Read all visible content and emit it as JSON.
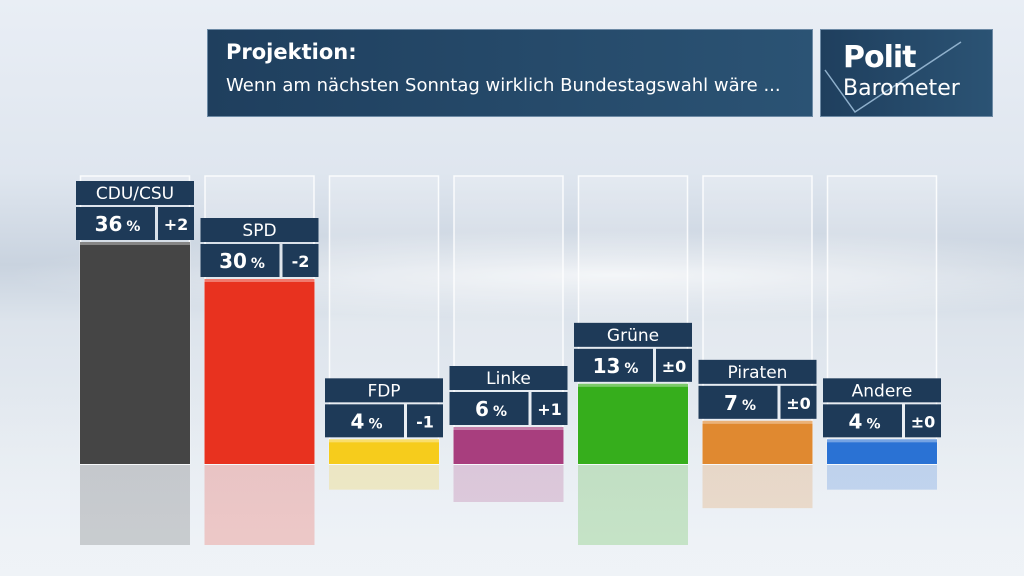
{
  "header": {
    "title": "Projektion:",
    "subtitle": "Wenn am nächsten Sonntag wirklich Bundestagswahl wäre ..."
  },
  "logo": {
    "line1": "Polit",
    "line2": "Barometer"
  },
  "chart_data": {
    "type": "bar",
    "title": "Projektion:",
    "subtitle": "Wenn am nächsten Sonntag wirklich Bundestagswahl wäre ...",
    "unit": "%",
    "ylim": [
      0,
      45
    ],
    "categories": [
      "CDU/CSU",
      "SPD",
      "FDP",
      "Linke",
      "Grüne",
      "Piraten",
      "Andere"
    ],
    "values": [
      36,
      30,
      4,
      6,
      13,
      7,
      4
    ],
    "changes": [
      "+2",
      "-2",
      "-1",
      "+1",
      "±0",
      "±0",
      "±0"
    ],
    "colors": [
      "#454545",
      "#e8321f",
      "#f6cc1c",
      "#a83e7e",
      "#36ae1c",
      "#e08930",
      "#2a72d4"
    ],
    "grid": false,
    "legend": "none"
  }
}
